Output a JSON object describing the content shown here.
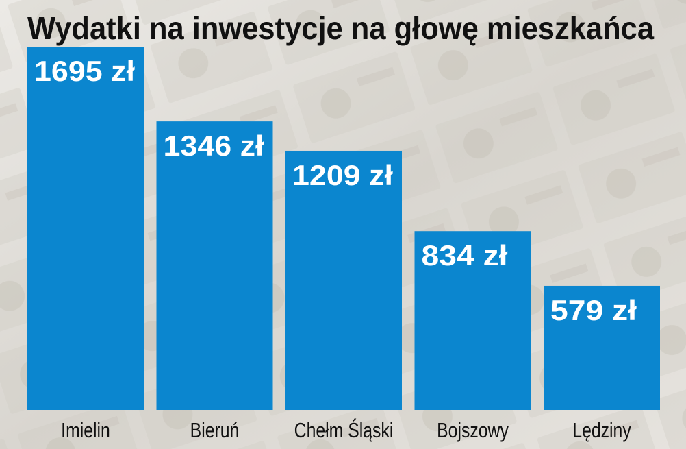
{
  "chart_data": {
    "type": "bar",
    "title": "Wydatki na inwestycje na głowę mieszkańca",
    "categories": [
      "Imielin",
      "Bieruń",
      "Chełm Śląski",
      "Bojszowy",
      "Lędziny"
    ],
    "values": [
      1695,
      1346,
      1209,
      834,
      579
    ],
    "value_labels": [
      "1695 zł",
      "1346 zł",
      "1209 zł",
      "834 zł",
      "579 zł"
    ],
    "color": "#0b86cf"
  }
}
